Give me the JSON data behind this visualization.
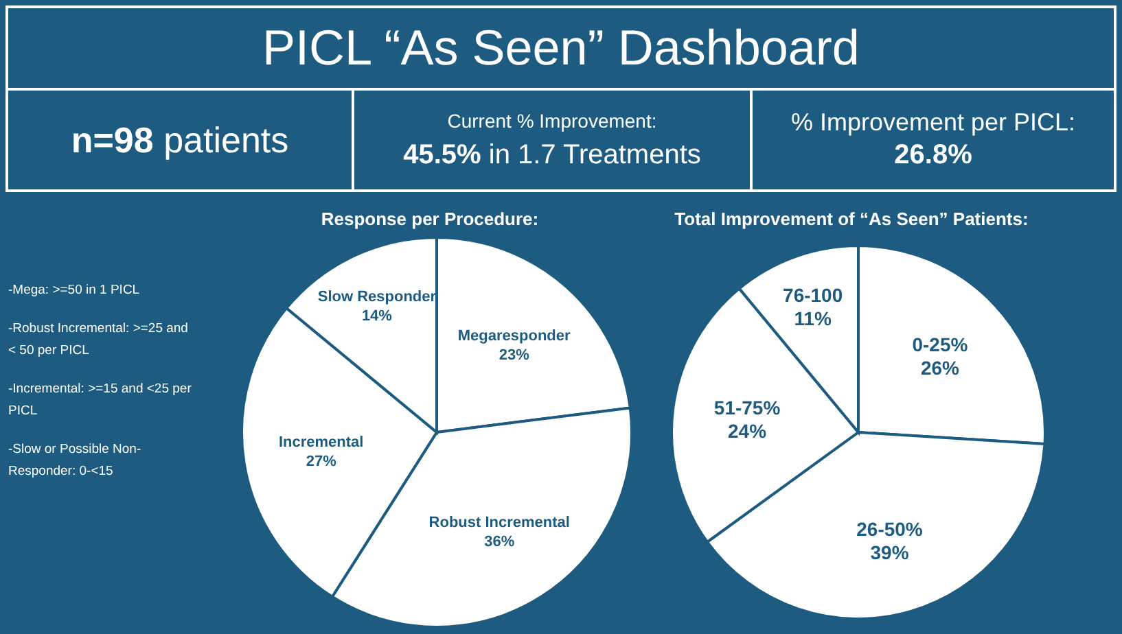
{
  "chart_data": [
    {
      "type": "other",
      "title": "PICL “As Seen” Dashboard",
      "annotations": [
        "n=98",
        "patients",
        "Current % Improvement:",
        "45.5%",
        "in 1.7 Treatments",
        "% Improvement per PICL:",
        "26.8%"
      ]
    },
    {
      "type": "pie",
      "title": "Response per Procedure:",
      "categories": [
        "Megaresponder",
        "Robust Incremental",
        "Incremental",
        "Slow Responder"
      ],
      "values": [
        23,
        36,
        27,
        14
      ],
      "value_labels": [
        "23%",
        "36%",
        "27%",
        "14%"
      ],
      "colors": [
        "#ffffff",
        "#ffffff",
        "#ffffff",
        "#ffffff"
      ],
      "annotations": [
        "-Mega: >=50 in 1 PICL",
        "-Robust Incremental: >=25 and < 50 per PICL",
        "-Incremental: >=15 and <25 per PICL",
        "-Slow or Possible Non-Responder: 0-<15"
      ]
    },
    {
      "type": "pie",
      "title": "Total Improvement of “As Seen” Patients:",
      "categories": [
        "0-25%",
        "26-50%",
        "51-75%",
        "76-100"
      ],
      "values": [
        26,
        39,
        24,
        11
      ],
      "value_labels": [
        "26%",
        "39%",
        "24%",
        "11%"
      ],
      "colors": [
        "#ffffff",
        "#ffffff",
        "#ffffff",
        "#ffffff"
      ]
    }
  ]
}
